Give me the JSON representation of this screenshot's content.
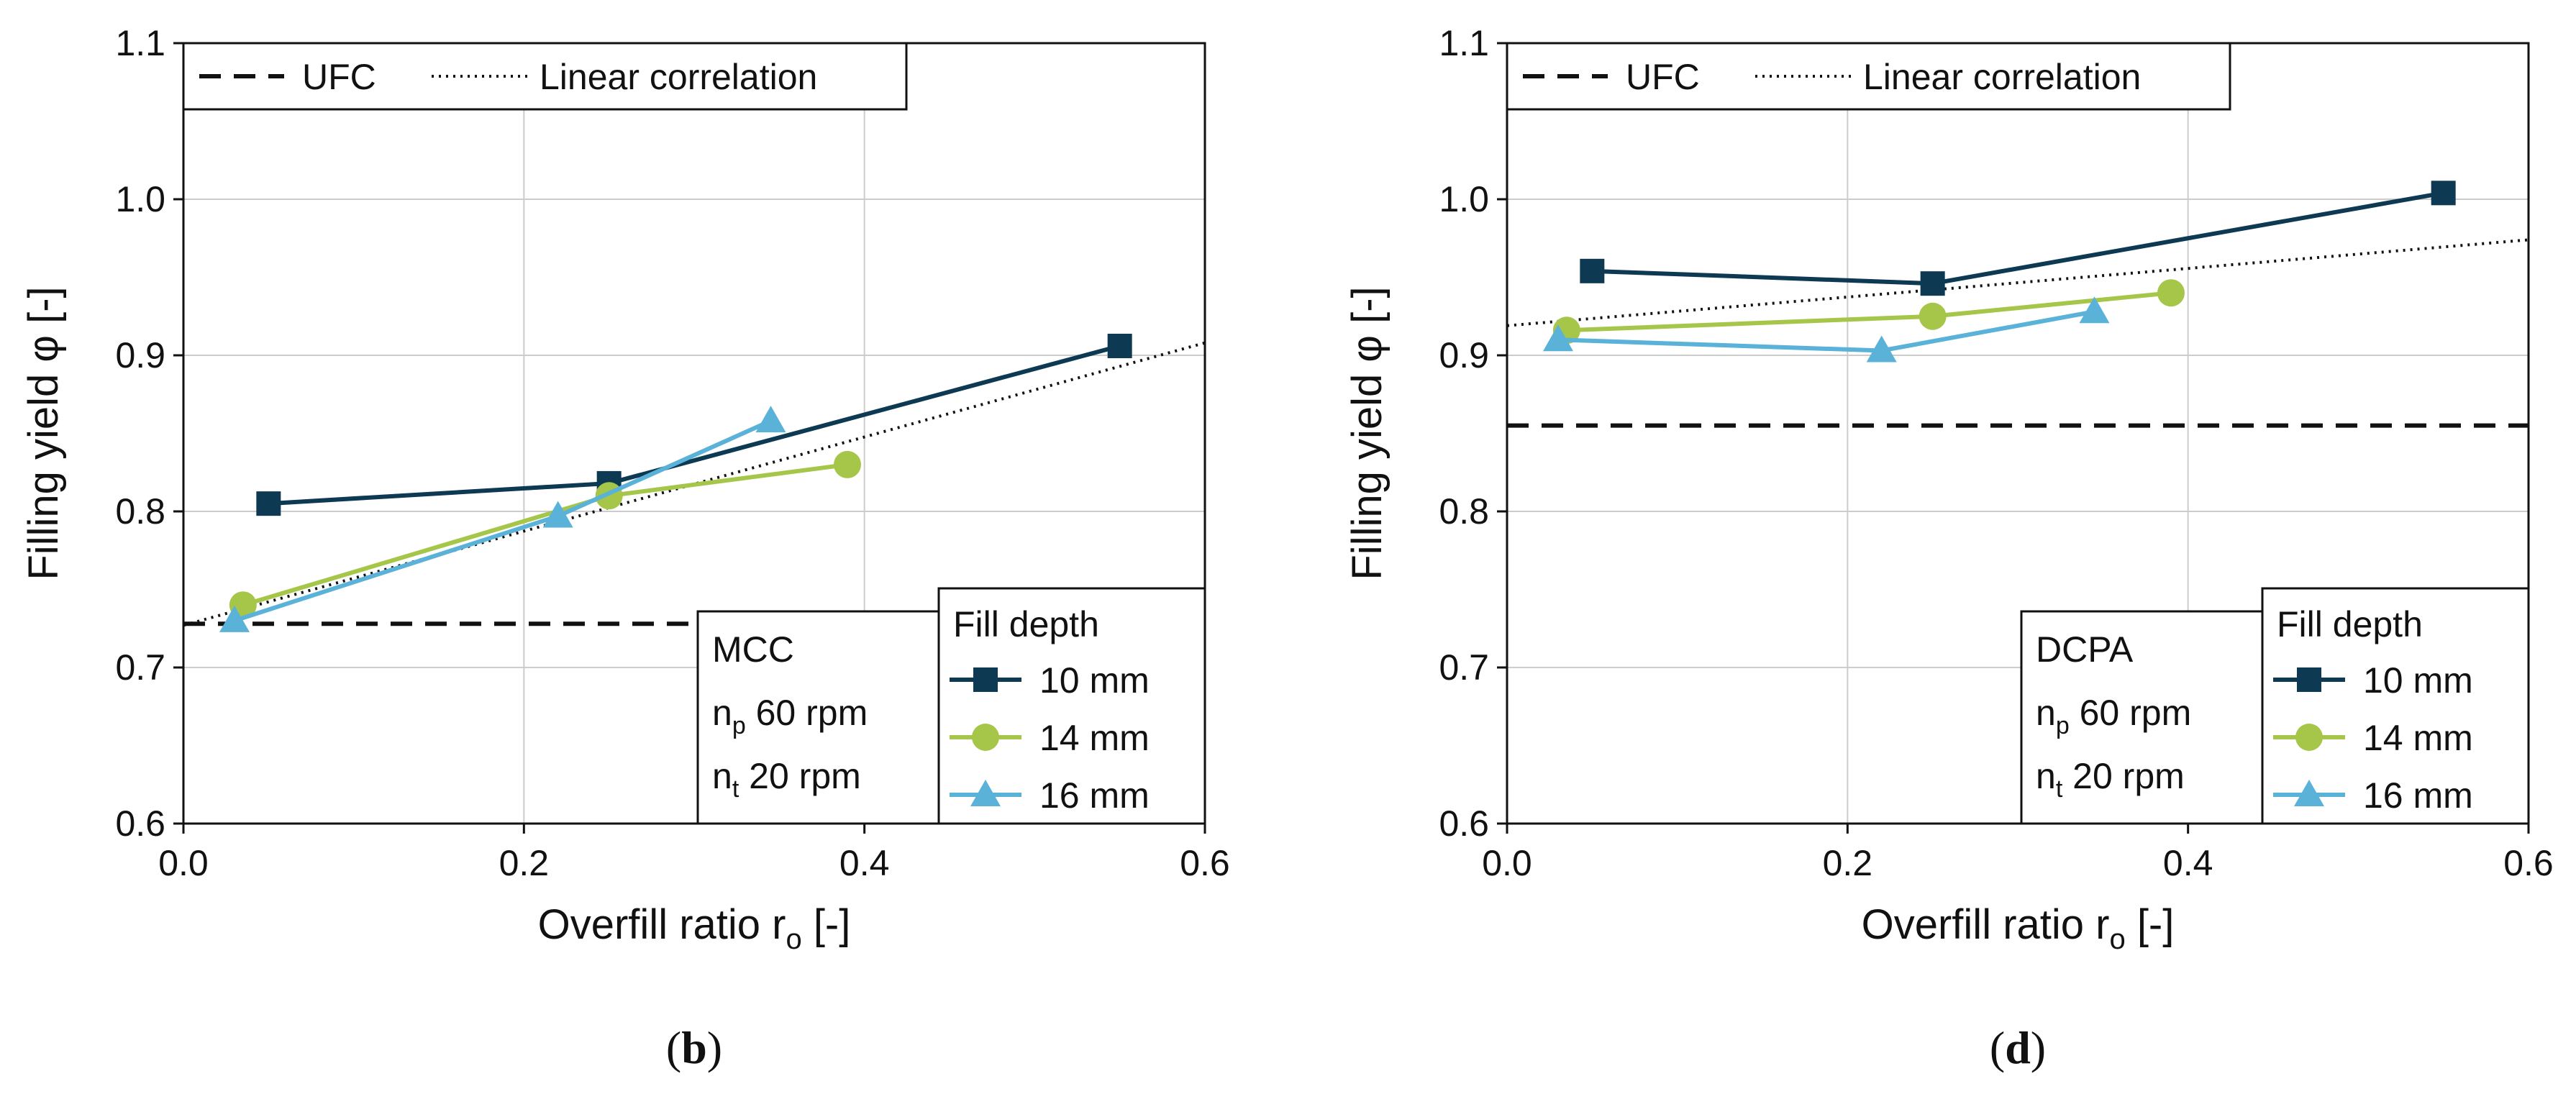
{
  "colors": {
    "series_10mm": "#0d3a52",
    "series_14mm": "#a6c64a",
    "series_16mm": "#5bb2d9",
    "reference": "#111111",
    "grid": "#cccccc"
  },
  "chart_data": [
    {
      "type": "line",
      "panel_label": "b",
      "xlabel_main": "Overfill ratio r",
      "xlabel_sub": "o",
      "xlabel_unit": " [-]",
      "ylabel": "Filling yield φ [-]",
      "xlim": [
        0.0,
        0.6
      ],
      "ylim": [
        0.6,
        1.1
      ],
      "xticks": [
        "0.0",
        "0.2",
        "0.4",
        "0.6"
      ],
      "yticks": [
        "0.6",
        "0.7",
        "0.8",
        "0.9",
        "1.0",
        "1.1"
      ],
      "grid": true,
      "legend_top": [
        "UFC",
        "Linear correlation"
      ],
      "legend_title": "Fill depth",
      "conditions": {
        "material": "MCC",
        "np_label": "n",
        "np_sub": "p",
        "np_value": " 60 rpm",
        "nt_label": "n",
        "nt_sub": "t",
        "nt_value": " 20 rpm"
      },
      "series": [
        {
          "name": "10 mm",
          "marker": "square",
          "x": [
            0.05,
            0.25,
            0.55
          ],
          "y": [
            0.805,
            0.818,
            0.906
          ]
        },
        {
          "name": "14 mm",
          "marker": "circle",
          "x": [
            0.035,
            0.25,
            0.39
          ],
          "y": [
            0.74,
            0.81,
            0.83
          ]
        },
        {
          "name": "16 mm",
          "marker": "triangle",
          "x": [
            0.03,
            0.22,
            0.345
          ],
          "y": [
            0.73,
            0.797,
            0.858
          ]
        }
      ],
      "ufc_line": {
        "x": [
          0.0,
          0.32
        ],
        "y": [
          0.728,
          0.728
        ]
      },
      "linear_correlation": {
        "x": [
          0.0,
          0.6
        ],
        "y": [
          0.727,
          0.908
        ]
      }
    },
    {
      "type": "line",
      "panel_label": "d",
      "xlabel_main": "Overfill ratio r",
      "xlabel_sub": "o",
      "xlabel_unit": " [-]",
      "ylabel": "Filling yield φ [-]",
      "xlim": [
        0.0,
        0.6
      ],
      "ylim": [
        0.6,
        1.1
      ],
      "xticks": [
        "0.0",
        "0.2",
        "0.4",
        "0.6"
      ],
      "yticks": [
        "0.6",
        "0.7",
        "0.8",
        "0.9",
        "1.0",
        "1.1"
      ],
      "grid": true,
      "legend_top": [
        "UFC",
        "Linear correlation"
      ],
      "legend_title": "Fill depth",
      "conditions": {
        "material": "DCPA",
        "np_label": "n",
        "np_sub": "p",
        "np_value": " 60 rpm",
        "nt_label": "n",
        "nt_sub": "t",
        "nt_value": " 20 rpm"
      },
      "series": [
        {
          "name": "10 mm",
          "marker": "square",
          "x": [
            0.05,
            0.25,
            0.55
          ],
          "y": [
            0.954,
            0.946,
            1.004
          ]
        },
        {
          "name": "14 mm",
          "marker": "circle",
          "x": [
            0.035,
            0.25,
            0.39
          ],
          "y": [
            0.916,
            0.925,
            0.94
          ]
        },
        {
          "name": "16 mm",
          "marker": "triangle",
          "x": [
            0.03,
            0.22,
            0.345
          ],
          "y": [
            0.91,
            0.903,
            0.928
          ]
        }
      ],
      "ufc_line": {
        "x": [
          0.0,
          0.6
        ],
        "y": [
          0.855,
          0.855
        ]
      },
      "linear_correlation": {
        "x": [
          0.0,
          0.6
        ],
        "y": [
          0.919,
          0.974
        ]
      }
    }
  ]
}
